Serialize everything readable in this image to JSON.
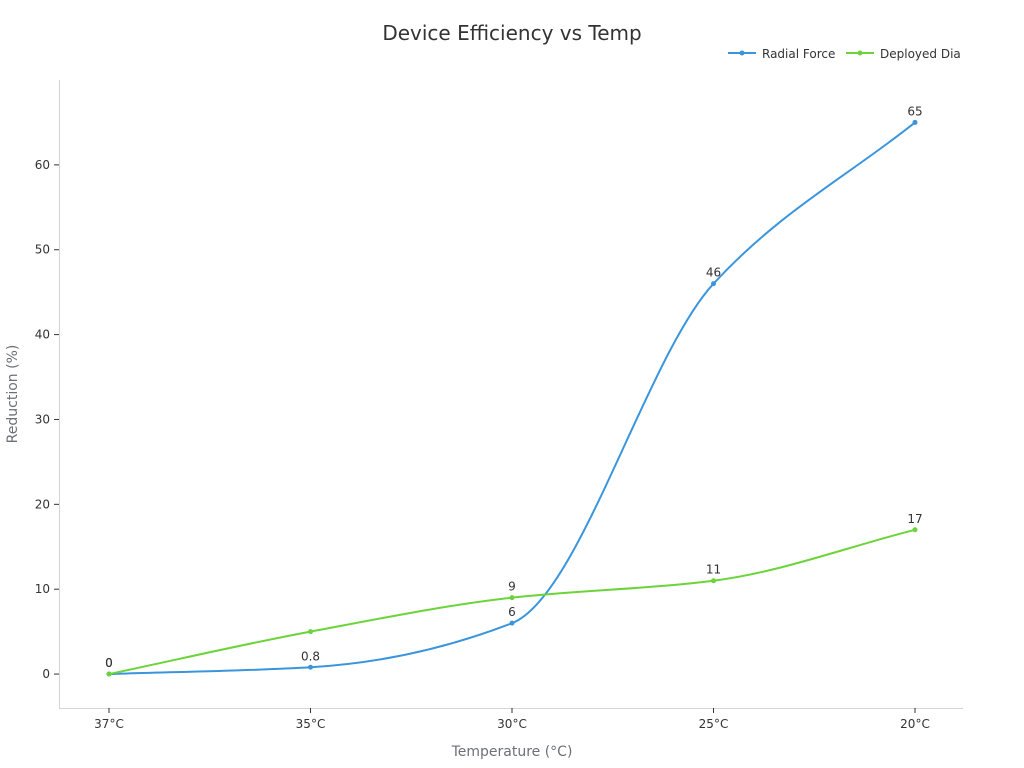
{
  "chart_data": {
    "type": "line",
    "title": "Device Efficiency vs Temp",
    "xlabel": "Temperature (°C)",
    "ylabel": "Reduction (%)",
    "categories": [
      "37°C",
      "35°C",
      "30°C",
      "25°C",
      "20°C"
    ],
    "ylim": [
      -4,
      70
    ],
    "yticks": [
      0,
      10,
      20,
      30,
      40,
      50,
      60
    ],
    "grid": false,
    "legend_position": "top-right",
    "smooth": true,
    "series": [
      {
        "name": "Radial Force",
        "color": "#3a95dd",
        "values": [
          0,
          0.8,
          6,
          46,
          65
        ]
      },
      {
        "name": "Deployed Dia",
        "color": "#6bd43a",
        "values": [
          0,
          5,
          9,
          11,
          17
        ]
      }
    ]
  }
}
